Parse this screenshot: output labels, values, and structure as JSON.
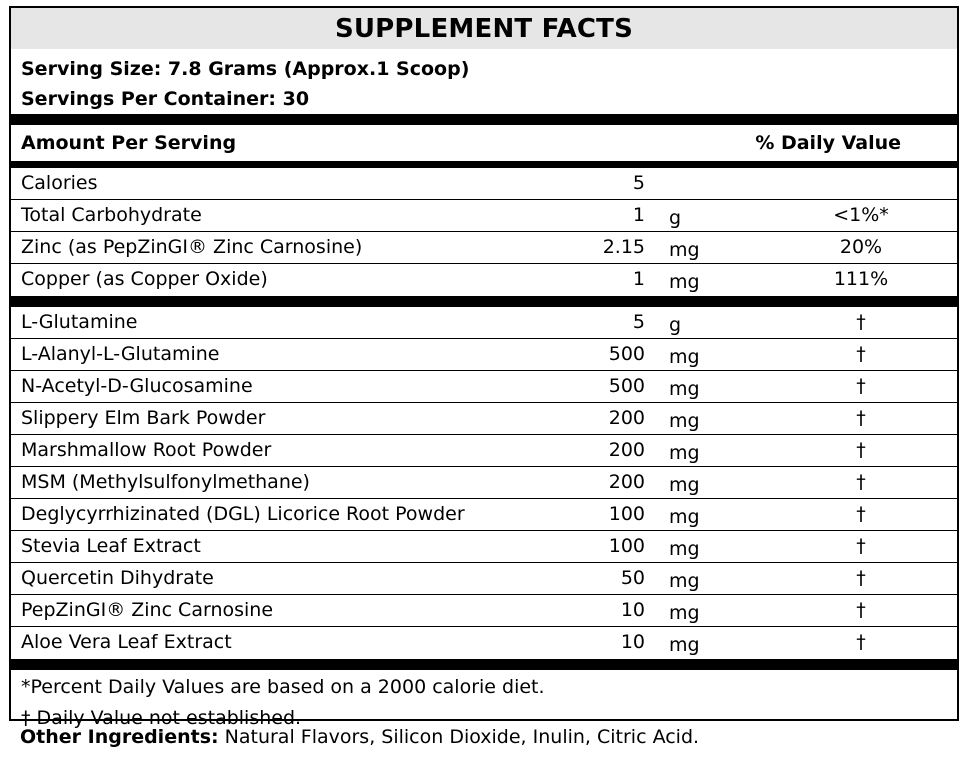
{
  "title": "SUPPLEMENT FACTS",
  "serving_size": "Serving Size: 7.8 Grams (Approx.1 Scoop)",
  "servings_per_container": "Servings Per Container: 30",
  "header": {
    "amount": "Amount Per Serving",
    "daily_value": "% Daily Value"
  },
  "nutrients": [
    {
      "name": "Calories",
      "amount": "5",
      "unit": "",
      "dv": ""
    },
    {
      "name": "Total Carbohydrate",
      "amount": "1",
      "unit": "g",
      "dv": "<1%*"
    },
    {
      "name": "Zinc (as PepZinGI® Zinc Carnosine)",
      "amount": "2.15",
      "unit": "mg",
      "dv": "20%"
    },
    {
      "name": "Copper (as Copper Oxide)",
      "amount": "1",
      "unit": "mg",
      "dv": "111%"
    }
  ],
  "ingredients": [
    {
      "name": "L-Glutamine",
      "amount": "5",
      "unit": "g",
      "dv": "†"
    },
    {
      "name": "L-Alanyl-L-Glutamine",
      "amount": "500",
      "unit": "mg",
      "dv": "†"
    },
    {
      "name": "N-Acetyl-D-Glucosamine",
      "amount": "500",
      "unit": "mg",
      "dv": "†"
    },
    {
      "name": "Slippery Elm Bark Powder",
      "amount": "200",
      "unit": "mg",
      "dv": "†"
    },
    {
      "name": "Marshmallow Root Powder",
      "amount": "200",
      "unit": "mg",
      "dv": "†"
    },
    {
      "name": "MSM (Methylsulfonylmethane)",
      "amount": "200",
      "unit": "mg",
      "dv": "†"
    },
    {
      "name": "Deglycyrrhizinated (DGL) Licorice Root Powder",
      "amount": "100",
      "unit": "mg",
      "dv": "†"
    },
    {
      "name": "Stevia Leaf Extract",
      "amount": "100",
      "unit": "mg",
      "dv": "†"
    },
    {
      "name": "Quercetin Dihydrate",
      "amount": "50",
      "unit": "mg",
      "dv": "†"
    },
    {
      "name": "PepZinGI® Zinc Carnosine",
      "amount": "10",
      "unit": "mg",
      "dv": "†"
    },
    {
      "name": "Aloe Vera Leaf Extract",
      "amount": "10",
      "unit": "mg",
      "dv": "†"
    }
  ],
  "footnotes": {
    "percent": "*Percent Daily Values are based on a 2000 calorie diet.",
    "dagger": "† Daily Value not established."
  },
  "other_ingredients": {
    "label": "Other Ingredients:",
    "text": " Natural Flavors, Silicon Dioxide, Inulin, Citric Acid."
  }
}
